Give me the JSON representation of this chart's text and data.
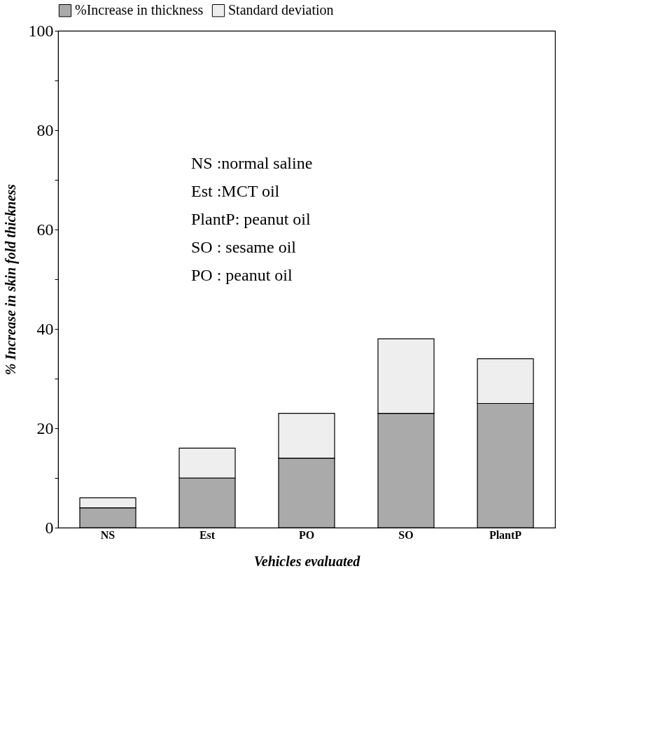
{
  "chart_data": {
    "type": "bar",
    "stacked": true,
    "xlabel": "Vehicles evaluated",
    "ylabel": "% Increase in skin fold thickness",
    "categories": [
      "NS",
      "Est",
      "PO",
      "SO",
      "PlantP"
    ],
    "series": [
      {
        "name": "%Increase in thickness",
        "color": "#aaaaaa",
        "values": [
          4,
          10,
          14,
          23,
          25
        ]
      },
      {
        "name": "Standard deviation",
        "color": "#eeeeee",
        "values": [
          2,
          6,
          9,
          15,
          9
        ]
      }
    ],
    "ylim": [
      0,
      100
    ],
    "yticks": [
      0,
      {
        "value": 10,
        "label": null
      },
      20,
      {
        "value": 30,
        "label": null
      },
      40,
      {
        "value": 50,
        "label": null
      },
      60,
      {
        "value": 70,
        "label": null
      },
      80,
      {
        "value": 90,
        "label": null
      },
      100
    ],
    "annotations": [
      "NS  :normal saline",
      "Est :MCT oil",
      "PlantP: peanut oil",
      "SO : sesame oil",
      "PO : peanut oil"
    ],
    "legend": "top",
    "grid": false
  }
}
